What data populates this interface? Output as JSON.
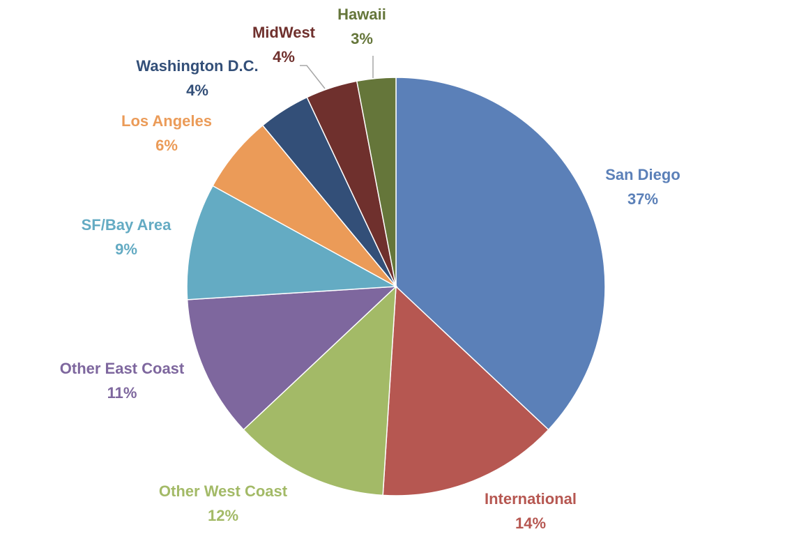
{
  "chart_data": {
    "type": "pie",
    "title": "",
    "slices": [
      {
        "label": "San Diego",
        "value": 37,
        "percent_label": "37%",
        "color": "#5B80B8"
      },
      {
        "label": "International",
        "value": 14,
        "percent_label": "14%",
        "color": "#B65751"
      },
      {
        "label": "Other West Coast",
        "value": 12,
        "percent_label": "12%",
        "color": "#A3BA67"
      },
      {
        "label": "Other East Coast",
        "value": 11,
        "percent_label": "11%",
        "color": "#7E679E"
      },
      {
        "label": "SF/Bay Area",
        "value": 9,
        "percent_label": "9%",
        "color": "#64ABC3"
      },
      {
        "label": "Los Angeles",
        "value": 6,
        "percent_label": "6%",
        "color": "#EB9B58"
      },
      {
        "label": "Washington D.C.",
        "value": 4,
        "percent_label": "4%",
        "color": "#334F78"
      },
      {
        "label": "MidWest",
        "value": 4,
        "percent_label": "4%",
        "color": "#6F302D"
      },
      {
        "label": "Hawaii",
        "value": 3,
        "percent_label": "3%",
        "color": "#65763A"
      }
    ],
    "label_colors": {
      "San Diego": "#5B80B8",
      "International": "#B65751",
      "Other West Coast": "#A3BA67",
      "Other East Coast": "#7E679E",
      "SF/Bay Area": "#64ABC3",
      "Los Angeles": "#EB9B58",
      "Washington D.C.": "#334F78",
      "MidWest": "#6F302D",
      "Hawaii": "#65763A"
    },
    "start": "12 o'clock",
    "direction": "clockwise",
    "legend": "none",
    "data_labels": "outside with category name and percentage"
  }
}
